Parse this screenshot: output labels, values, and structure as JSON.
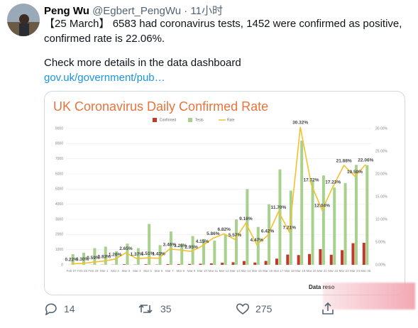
{
  "tweet": {
    "name": "Peng Wu",
    "handle": "@Egbert_PengWu · 11小时",
    "text": "【25 March】 6583 had coronavirus tests, 1452 were confirmed as positive, confirmed rate is 22.06%.",
    "text2": "Check more details in the data dashboard",
    "link": "gov.uk/government/pub…",
    "replies": "14",
    "retweets": "35",
    "likes": "275"
  },
  "chart_data": {
    "type": "bar",
    "title": "UK Coronavirus Daily Confirmed Rate",
    "note": "Data reso",
    "categories": [
      "Feb 27",
      "Feb 28",
      "Feb 29",
      "Mar 1",
      "Mar 2",
      "Mar 3",
      "Mar 4",
      "Mar 5",
      "Mar 6",
      "Mar 7",
      "Mar 8",
      "Mar 9",
      "Mar 10",
      "Mar 11",
      "Mar 12",
      "Mar 13",
      "Mar 14",
      "Mar 15",
      "Mar 16",
      "Mar 17",
      "Mar 18",
      "Mar 19",
      "Mar 20",
      "Mar 21",
      "Mar 22",
      "Mar 23",
      "Mar 24",
      "Mar 25"
    ],
    "series": [
      {
        "name": "Confirmed",
        "color": "#c0392b",
        "values": [
          2,
          2,
          6,
          10,
          11,
          37,
          15,
          41,
          19,
          46,
          46,
          56,
          71,
          94,
          136,
          167,
          250,
          152,
          257,
          407,
          676,
          643,
          714,
          1035,
          665,
          967,
          1427,
          1452
        ]
      },
      {
        "name": "Tests",
        "color": "#a9d18e",
        "values": [
          700,
          800,
          1100,
          1200,
          900,
          1400,
          1100,
          2700,
          1300,
          2200,
          1400,
          1900,
          1700,
          1600,
          2000,
          3000,
          5000,
          2500,
          4000,
          6300,
          4900,
          8200,
          5600,
          5900,
          5100,
          5400,
          6600,
          6583
        ]
      },
      {
        "name": "Rate",
        "color": "#f2c12e",
        "axis": "y2",
        "values": [
          0.22,
          0.3,
          0.59,
          0.83,
          1.26,
          2.65,
          1.37,
          1.51,
          1.43,
          3.46,
          3.26,
          2.95,
          4.15,
          5.86,
          6.82,
          5.57,
          9.16,
          4.47,
          6.42,
          11.7,
          7.21,
          30.32,
          17.72,
          12.04,
          17.23,
          21.88,
          19.5,
          22.06
        ],
        "value_labels": [
          "0.22%",
          "0.30%",
          "0.59%",
          "0.83%",
          "1.26%",
          "2.65%",
          "1.37%",
          "1.51%",
          "1.43%",
          "3.46%",
          "3.26%",
          "2.95%",
          "4.15%",
          "5.86%",
          "6.82%",
          "5.57%",
          "9.16%",
          "4.47%",
          "6.42%",
          "11.70%",
          "7.21%",
          "30.32%",
          "17.72%",
          "12.04%",
          "17.23%",
          "21.88%",
          "19.50%",
          "22.06%"
        ]
      }
    ],
    "ylim": [
      0,
      9000
    ],
    "yticks": [
      0,
      1000,
      2000,
      3000,
      4000,
      5000,
      6000,
      7000,
      8000,
      9000
    ],
    "y2lim": [
      0,
      30
    ],
    "y2ticks": [
      {
        "value": 0,
        "label": "0.00%"
      },
      {
        "value": 5,
        "label": "5.00%"
      },
      {
        "value": 10,
        "label": "10.00%"
      },
      {
        "value": 15,
        "label": "15.00%"
      },
      {
        "value": 20,
        "label": "20.00%"
      },
      {
        "value": 25,
        "label": "25.00%"
      },
      {
        "value": 30,
        "label": "30.00%"
      }
    ],
    "grid": true,
    "legend": "top"
  }
}
